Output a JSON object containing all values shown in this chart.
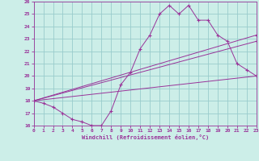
{
  "xlabel": "Windchill (Refroidissement éolien,°C)",
  "background_color": "#cceee8",
  "line_color": "#993399",
  "grid_color": "#99cccc",
  "x_min": 0,
  "x_max": 23,
  "y_min": 16,
  "y_max": 26,
  "x_ticks": [
    0,
    1,
    2,
    3,
    4,
    5,
    6,
    7,
    8,
    9,
    10,
    11,
    12,
    13,
    14,
    15,
    16,
    17,
    18,
    19,
    20,
    21,
    22,
    23
  ],
  "y_ticks": [
    16,
    17,
    18,
    19,
    20,
    21,
    22,
    23,
    24,
    25,
    26
  ],
  "line1_x": [
    0,
    1,
    2,
    3,
    4,
    5,
    6,
    7,
    8,
    9,
    10,
    11,
    12,
    13,
    14,
    15,
    16,
    17,
    18,
    19,
    20,
    21,
    22,
    23
  ],
  "line1_y": [
    18.0,
    17.8,
    17.5,
    17.0,
    16.5,
    16.3,
    16.0,
    16.0,
    17.2,
    19.3,
    20.3,
    22.2,
    23.3,
    25.0,
    25.7,
    25.0,
    25.7,
    24.5,
    24.5,
    23.3,
    22.8,
    21.0,
    20.5,
    20.0
  ],
  "line2_x": [
    0,
    23
  ],
  "line2_y": [
    18.0,
    23.3
  ],
  "line3_x": [
    0,
    23
  ],
  "line3_y": [
    18.0,
    22.8
  ],
  "line4_x": [
    0,
    23
  ],
  "line4_y": [
    18.0,
    20.0
  ]
}
